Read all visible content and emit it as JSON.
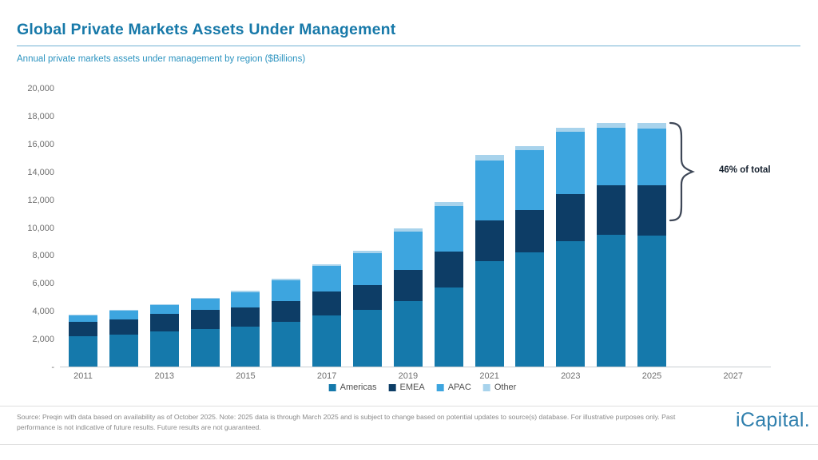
{
  "page": {
    "title": "Global Private Markets Assets Under Management",
    "subtitle": "Annual private markets assets under management by region ($Billions)",
    "annotation": "46% of total",
    "footer": {
      "source_text": "Source: Preqin with data based on availability as of October 2025. Note: 2025 data is through March 2025 and is subject to change based on potential updates to source(s) database. For illustrative purposes only. Past performance is not indicative of future results. Future results are not guaranteed.",
      "logo_text": "iCapital."
    }
  },
  "chart_data": {
    "type": "bar",
    "stacked": true,
    "title": "Global Private Markets Assets Under Management",
    "subtitle": "Annual private markets assets under management by region ($Billions)",
    "xlabel": "",
    "ylabel": "$Billions",
    "ylim": [
      0,
      20000
    ],
    "grid": false,
    "legend_position": "bottom",
    "categories": [
      2011,
      2012,
      2013,
      2014,
      2015,
      2016,
      2017,
      2018,
      2019,
      2020,
      2021,
      2022,
      2023,
      2024,
      2025
    ],
    "series": [
      {
        "name": "Americas",
        "color": "#1579AB",
        "values": [
          2250,
          2330,
          2580,
          2770,
          2900,
          3280,
          3730,
          4110,
          4770,
          5730,
          7600,
          8250,
          9050,
          9500,
          9450
        ]
      },
      {
        "name": "EMEA",
        "color": "#0D3D66",
        "values": [
          1000,
          1100,
          1240,
          1340,
          1390,
          1490,
          1720,
          1810,
          2200,
          2580,
          2950,
          3050,
          3400,
          3570,
          3630
        ]
      },
      {
        "name": "APAC",
        "color": "#3DA5DF",
        "values": [
          500,
          630,
          650,
          790,
          1110,
          1490,
          1830,
          2290,
          2770,
          3270,
          4300,
          4260,
          4450,
          4150,
          4070
        ]
      },
      {
        "name": "Other",
        "color": "#A8D3EC",
        "values": [
          40,
          50,
          60,
          70,
          80,
          100,
          120,
          160,
          260,
          270,
          400,
          320,
          300,
          300,
          380
        ]
      }
    ],
    "totals": [
      3790,
      4110,
      4530,
      4970,
      5480,
      6360,
      7400,
      8370,
      10000,
      11850,
      15250,
      15880,
      17200,
      17520,
      17530
    ],
    "y_ticks": [
      {
        "label": "20,000",
        "value": 20000
      },
      {
        "label": "18,000",
        "value": 18000
      },
      {
        "label": "16,000",
        "value": 16000
      },
      {
        "label": "14,000",
        "value": 14000
      },
      {
        "label": "12,000",
        "value": 12000
      },
      {
        "label": "10,000",
        "value": 10000
      },
      {
        "label": "8,000",
        "value": 8000
      },
      {
        "label": "6,000",
        "value": 6000
      },
      {
        "label": "4,000",
        "value": 4000
      },
      {
        "label": "2,000",
        "value": 2000
      },
      {
        "label": "-",
        "value": 0
      }
    ],
    "x_ticks": [
      {
        "label": "2011",
        "year": 2011
      },
      {
        "label": "2013",
        "year": 2013
      },
      {
        "label": "2015",
        "year": 2015
      },
      {
        "label": "2017",
        "year": 2017
      },
      {
        "label": "2019",
        "year": 2019
      },
      {
        "label": "2021",
        "year": 2021
      },
      {
        "label": "2023",
        "year": 2023
      },
      {
        "label": "2025",
        "year": 2025
      },
      {
        "label": "2027",
        "year": 2027
      }
    ],
    "annotations": [
      {
        "text": "46% of total",
        "target_year": 2025
      }
    ]
  }
}
